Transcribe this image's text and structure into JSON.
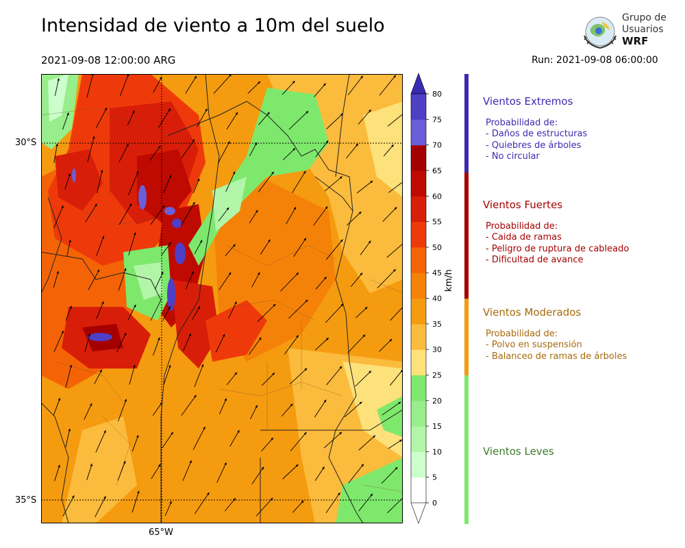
{
  "header": {
    "title": "Intensidad de viento a 10m del suelo",
    "valid_time": "2021-09-08 12:00:00 ARG",
    "run_time": "Run: 2021-09-08 06:00:00"
  },
  "logo": {
    "line1": "Grupo de",
    "line2": "Usuarios",
    "line3": "WRF",
    "emblem_icon": "globe-emblem-icon"
  },
  "map": {
    "lat_labels": [
      "30°S",
      "35°S"
    ],
    "lon_labels": [
      "65°W"
    ],
    "field": "wind-speed-10m",
    "arrow_icon": "wind-arrow-icon"
  },
  "colorbar": {
    "unit": "km/h",
    "ticks": [
      "0",
      "5",
      "10",
      "15",
      "20",
      "25",
      "30",
      "35",
      "40",
      "45",
      "50",
      "55",
      "60",
      "65",
      "70",
      "75",
      "80"
    ],
    "colors": [
      "#ffffff",
      "#ccffcc",
      "#b2f5a8",
      "#98ee8a",
      "#7ee86c",
      "#fde17a",
      "#fbbb3c",
      "#f59b10",
      "#f58208",
      "#f46406",
      "#ee3a0a",
      "#d81e08",
      "#be0a00",
      "#a40000",
      "#6b5ed8",
      "#4f3fc6",
      "#3b2ab0"
    ],
    "over_color": "#3b2ab0"
  },
  "categories": [
    {
      "title": "Vientos Extremos",
      "subtitle": "Probabilidad de:",
      "items": [
        "- Daños de estructuras",
        "- Quiebres de árboles",
        "- No circular"
      ],
      "color": "#3b2ab0"
    },
    {
      "title": "Vientos Fuertes",
      "subtitle": "Probabilidad de:",
      "items": [
        "- Caida de ramas",
        "- Peligro de ruptura de cableado",
        "- Dificultad de avance"
      ],
      "color": "#a40000"
    },
    {
      "title": "Vientos Moderados",
      "subtitle": "Probabilidad de:",
      "items": [
        "- Polvo en suspensión",
        "- Balanceo de ramas de árboles"
      ],
      "color": "#f59b10",
      "text_color": "#a66a0a"
    },
    {
      "title": "Vientos Leves",
      "subtitle": "",
      "items": [],
      "color": "#7ee86c",
      "text_color": "#3c7a2a"
    }
  ]
}
